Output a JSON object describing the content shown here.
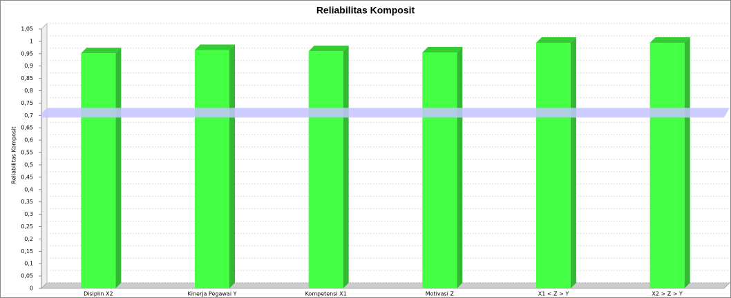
{
  "chart_data": {
    "type": "bar3d",
    "title": "Reliabilitas Komposit",
    "y_label": "Reliabilitas Komposit",
    "categories": [
      "Disiplin X2",
      "Kinerja Pegawai Y",
      "Kompetensi X1",
      "Motivasi Z",
      "X1 < Z > Y",
      "X2 > Z > Y"
    ],
    "values": [
      0.952,
      0.965,
      0.96,
      0.955,
      0.994,
      0.994
    ],
    "color": "#44ff44",
    "reference_line": 0.7,
    "reference_color": "#c4c4ff",
    "ylim": [
      0,
      1.05
    ],
    "yticks": [
      0,
      {
        "value": 0.05,
        "label": "0,05"
      },
      {
        "value": 0.1,
        "label": "0,1"
      },
      {
        "value": 0.15,
        "label": "0,15"
      },
      {
        "value": 0.2,
        "label": "0,2"
      },
      {
        "value": 0.25,
        "label": "0,25"
      },
      {
        "value": 0.3,
        "label": "0,3"
      },
      {
        "value": 0.35,
        "label": "0,35"
      },
      {
        "value": 0.4,
        "label": "0,4"
      },
      {
        "value": 0.45,
        "label": "0,45"
      },
      {
        "value": 0.5,
        "label": "0,5"
      },
      {
        "value": 0.55,
        "label": "0,55"
      },
      {
        "value": 0.6,
        "label": "0,6"
      },
      {
        "value": 0.65,
        "label": "0,65"
      },
      {
        "value": 0.7,
        "label": "0,7"
      },
      {
        "value": 0.75,
        "label": "0,75"
      },
      {
        "value": 0.8,
        "label": "0,8"
      },
      {
        "value": 0.85,
        "label": "0,85"
      },
      {
        "value": 0.9,
        "label": "0,9"
      },
      {
        "value": 0.95,
        "label": "0,95"
      },
      1,
      {
        "value": 1.05,
        "label": "1,05"
      }
    ],
    "grid": true
  }
}
